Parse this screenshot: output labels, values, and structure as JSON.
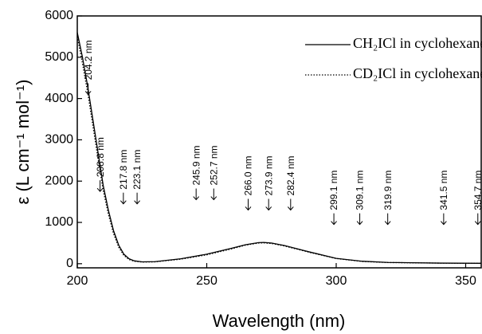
{
  "chart_data": {
    "type": "line",
    "x_label": "Wavelength (nm)",
    "y_label": "ε (L cm⁻¹ mol⁻¹)",
    "x": [
      200,
      202,
      204,
      206,
      208,
      210,
      212,
      214,
      216,
      218,
      220,
      222,
      225,
      230,
      240,
      250,
      260,
      265,
      270,
      272,
      275,
      280,
      290,
      300,
      310,
      320,
      340,
      356
    ],
    "series": [
      {
        "name": "CH₂ICl in cyclohexane",
        "color": "#000000",
        "style": "solid",
        "values": [
          5600,
          5000,
          4300,
          3500,
          2700,
          1900,
          1300,
          800,
          450,
          230,
          120,
          70,
          45,
          50,
          120,
          230,
          380,
          460,
          510,
          515,
          500,
          440,
          280,
          130,
          60,
          30,
          15,
          10
        ]
      },
      {
        "name": "CD₂ICl in cyclohexane",
        "color": "#000000",
        "style": "dotted",
        "values": [
          5500,
          4850,
          4150,
          3350,
          2550,
          1780,
          1200,
          730,
          400,
          200,
          100,
          60,
          40,
          45,
          110,
          215,
          365,
          450,
          500,
          505,
          490,
          430,
          270,
          125,
          55,
          28,
          14,
          10
        ]
      }
    ],
    "annotations": [
      {
        "value": 204.2,
        "label": "204.2 nm",
        "y": 4100
      },
      {
        "value": 208.8,
        "label": "208.8 nm",
        "y": 1750
      },
      {
        "value": 217.8,
        "label": "217.8 nm",
        "y": 1450
      },
      {
        "value": 223.1,
        "label": "223.1 nm",
        "y": 1450
      },
      {
        "value": 245.9,
        "label": "245.9 nm",
        "y": 1550
      },
      {
        "value": 252.7,
        "label": "252.7 nm",
        "y": 1550
      },
      {
        "value": 266.0,
        "label": "266.0 nm",
        "y": 1300
      },
      {
        "value": 273.9,
        "label": "273.9 nm",
        "y": 1300
      },
      {
        "value": 282.4,
        "label": "282.4 nm",
        "y": 1300
      },
      {
        "value": 299.1,
        "label": "299.1 nm",
        "y": 950
      },
      {
        "value": 309.1,
        "label": "309.1 nm",
        "y": 950
      },
      {
        "value": 319.9,
        "label": "319.9 nm",
        "y": 950
      },
      {
        "value": 341.5,
        "label": "341.5 nm",
        "y": 950
      },
      {
        "value": 354.7,
        "label": "354.7 nm",
        "y": 950
      }
    ],
    "xlim": [
      200,
      356
    ],
    "xticks": [
      200,
      250,
      300,
      350
    ],
    "ylim": [
      -100,
      6000
    ],
    "yticks": [
      0,
      1000,
      2000,
      3000,
      4000,
      5000,
      6000
    ],
    "legend": "upper right",
    "grid": false
  }
}
